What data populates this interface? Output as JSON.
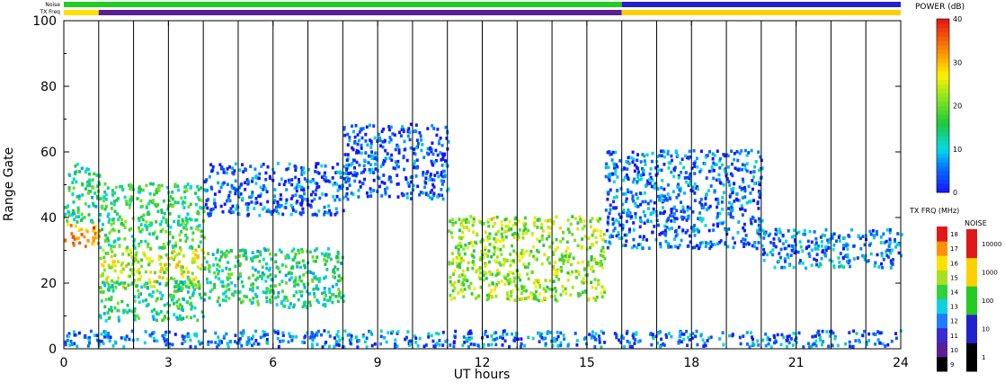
{
  "chart_data": {
    "type": "heatmap",
    "xlabel": "UT hours",
    "ylabel": "Range Gate",
    "xlim": [
      0,
      24
    ],
    "ylim": [
      0,
      100
    ],
    "x_ticks": [
      "0",
      "3",
      "6",
      "9",
      "12",
      "15",
      "18",
      "21",
      "24"
    ],
    "x_tick_values": [
      0,
      3,
      6,
      9,
      12,
      15,
      18,
      21,
      24
    ],
    "y_ticks": [
      "0",
      "20",
      "40",
      "60",
      "80",
      "100"
    ],
    "y_tick_values": [
      0,
      20,
      40,
      60,
      80,
      100
    ],
    "scan_boundaries_ut": [
      1,
      2,
      3,
      4,
      5,
      6,
      7,
      8,
      9,
      10,
      11,
      12,
      13,
      14,
      15,
      16,
      17,
      18,
      19,
      20,
      21,
      22,
      23
    ],
    "strip_labels": {
      "noise": "Noise",
      "tx_freq": "TX Freq"
    },
    "noise_strip": [
      {
        "from": 0,
        "to": 16,
        "color": "#22cc22"
      },
      {
        "from": 16,
        "to": 24,
        "color": "#2222cc"
      }
    ],
    "txfreq_strip": [
      {
        "from": 0,
        "to": 1,
        "color": "#ffe000"
      },
      {
        "from": 1,
        "to": 16,
        "color": "#5a1e96"
      },
      {
        "from": 16,
        "to": 24,
        "color": "#ffd000"
      }
    ],
    "power_scale": {
      "title": "POWER (dB)",
      "ticks": [
        "0",
        "10",
        "20",
        "30",
        "40"
      ],
      "range": [
        0,
        40
      ]
    },
    "txfreq_scale": {
      "title": "TX FRQ (MHz)",
      "ticks": [
        "9",
        "10",
        "11",
        "12",
        "13",
        "14",
        "15",
        "16",
        "17",
        "18"
      ]
    },
    "noise_scale": {
      "title": "NOISE",
      "ticks": [
        "1",
        "10",
        "100",
        "1000",
        "10000"
      ]
    },
    "echo_regions": [
      {
        "t0": 0.0,
        "t1": 1.0,
        "g0": 30,
        "g1": 38,
        "power": 32
      },
      {
        "t0": 0.0,
        "t1": 1.0,
        "g0": 38,
        "g1": 56,
        "power": 14
      },
      {
        "t0": 1.0,
        "t1": 4.0,
        "g0": 18,
        "g1": 30,
        "power": 24
      },
      {
        "t0": 1.0,
        "t1": 4.0,
        "g0": 30,
        "g1": 50,
        "power": 16
      },
      {
        "t0": 1.0,
        "t1": 4.0,
        "g0": 8,
        "g1": 20,
        "power": 14
      },
      {
        "t0": 4.0,
        "t1": 8.0,
        "g0": 12,
        "g1": 30,
        "power": 14
      },
      {
        "t0": 4.0,
        "t1": 8.0,
        "g0": 40,
        "g1": 56,
        "power": 4
      },
      {
        "t0": 8.0,
        "t1": 11.0,
        "g0": 45,
        "g1": 68,
        "power": 3
      },
      {
        "t0": 11.0,
        "t1": 15.5,
        "g0": 14,
        "g1": 40,
        "power": 22
      },
      {
        "t0": 15.5,
        "t1": 20.0,
        "g0": 30,
        "g1": 60,
        "power": 5
      },
      {
        "t0": 20.0,
        "t1": 24.0,
        "g0": 24,
        "g1": 36,
        "power": 6
      },
      {
        "t0": 0.0,
        "t1": 24.0,
        "g0": 0,
        "g1": 5,
        "power": 6
      }
    ]
  }
}
